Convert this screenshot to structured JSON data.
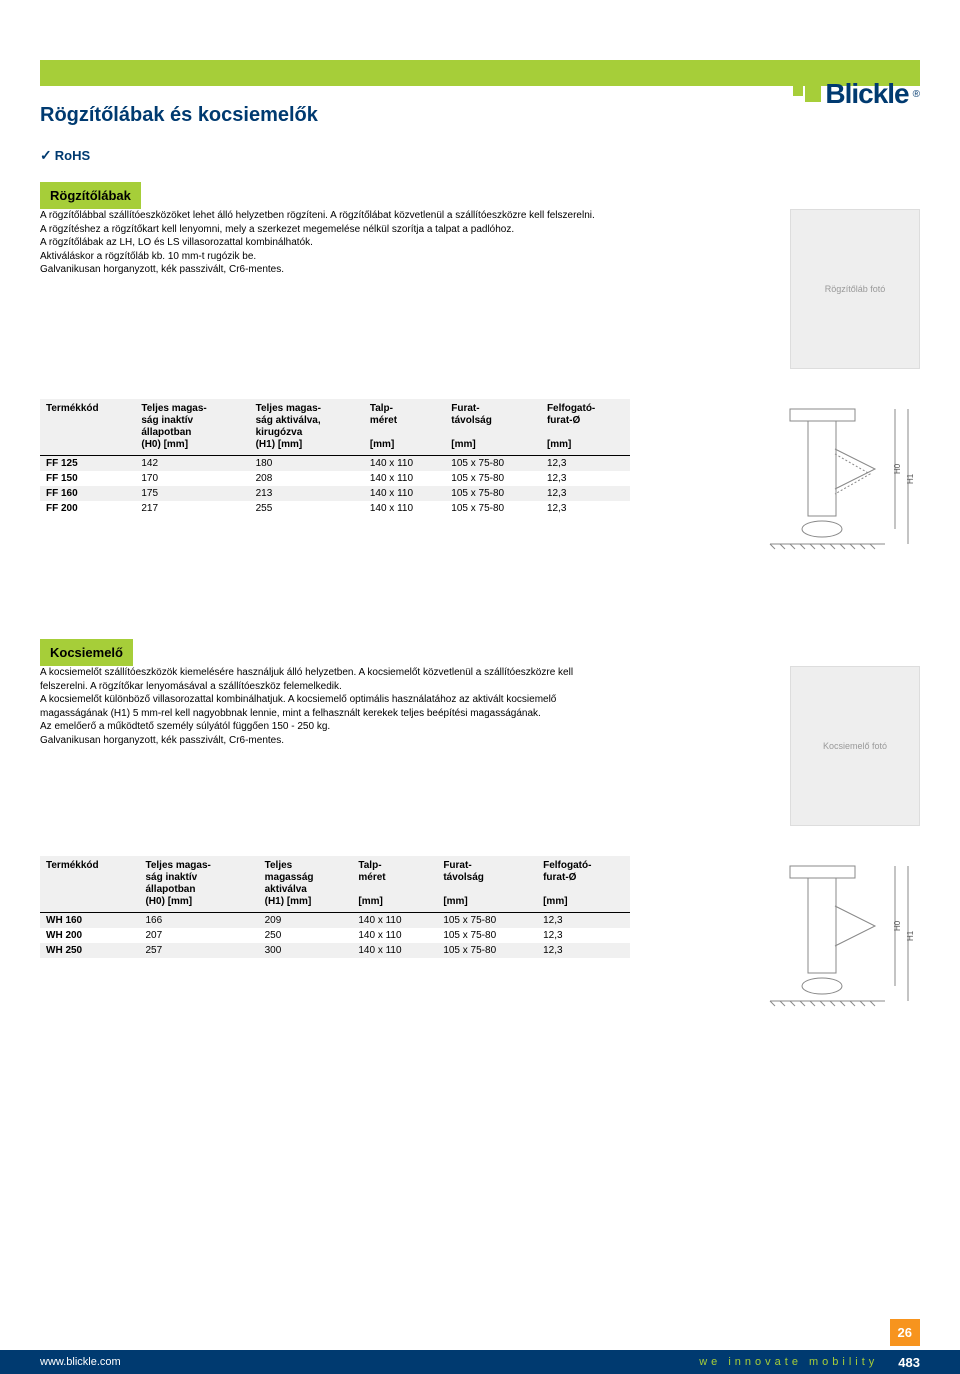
{
  "brand": {
    "name": "Blickle",
    "reg": "®"
  },
  "page_title": "Rögzítőlábak és kocsiemelők",
  "rohs": "RoHS",
  "section1": {
    "tab": "Rögzítőlábak",
    "desc_l1": "A rögzítőlábbal szállítóeszközöket lehet álló helyzetben rögzíteni. A rögzítőlábat közvetlenül a szállítóeszközre kell felszerelni. A rögzítéshez a rögzítőkart kell lenyomni, mely a szerkezet megemelése nélkül szorítja a talpat a padlóhoz.",
    "desc_l2": "A rögzítőlábak az LH, LO és LS villasorozattal kombinálhatók.",
    "desc_l3": "Aktiváláskor a rögzítőláb kb. 10 mm-t rugózik be.",
    "desc_l4": "Galvanikusan horganyzott, kék passzivált, Cr6-mentes.",
    "photo": "Rögzítőláb fotó",
    "diagram": "Méretrajz"
  },
  "table1": {
    "headers": {
      "c0_l1": "Termékkód",
      "c1_l1": "Teljes magas-",
      "c1_l2": "ság inaktív",
      "c1_l3": "állapotban",
      "c1_l4": "(H0) [mm]",
      "c2_l1": "Teljes magas-",
      "c2_l2": "ság aktiválva,",
      "c2_l3": "kirugózva",
      "c2_l4": "(H1) [mm]",
      "c3_l1": "Talp-",
      "c3_l2": "méret",
      "c3_l4": "[mm]",
      "c4_l1": "Furat-",
      "c4_l2": "távolság",
      "c4_l4": "[mm]",
      "c5_l1": "Felfogató-",
      "c5_l2": "furat-Ø",
      "c5_l4": "[mm]"
    },
    "rows": [
      {
        "code": "FF 125",
        "h0": "142",
        "h1": "180",
        "plate": "140 x 110",
        "bolt": "105 x 75-80",
        "hole": "12,3"
      },
      {
        "code": "FF 150",
        "h0": "170",
        "h1": "208",
        "plate": "140 x 110",
        "bolt": "105 x 75-80",
        "hole": "12,3"
      },
      {
        "code": "FF 160",
        "h0": "175",
        "h1": "213",
        "plate": "140 x 110",
        "bolt": "105 x 75-80",
        "hole": "12,3"
      },
      {
        "code": "FF 200",
        "h0": "217",
        "h1": "255",
        "plate": "140 x 110",
        "bolt": "105 x 75-80",
        "hole": "12,3"
      }
    ]
  },
  "section2": {
    "tab": "Kocsiemelő",
    "desc_l1": "A kocsiemelőt szállítóeszközök kiemelésére használjuk álló helyzetben. A kocsiemelőt közvetlenül a szállítóeszközre kell felszerelni. A rögzítőkar lenyomásával a szállítóeszköz felemelkedik.",
    "desc_l2": "A kocsiemelőt különböző villasorozattal kombinálhatjuk. A kocsiemelő optimális használatához az aktivált kocsiemelő magasságának (H1) 5 mm-rel kell nagyobbnak lennie, mint a felhasznált kerekek teljes beépítési magasságának.",
    "desc_l3": "Az emelőerő a működtető személy súlyától függően 150 - 250 kg.",
    "desc_l4": "Galvanikusan horganyzott, kék passzivált, Cr6-mentes.",
    "photo": "Kocsiemelő fotó",
    "diagram": "Méretrajz"
  },
  "table2": {
    "headers": {
      "c0_l1": "Termékkód",
      "c1_l1": "Teljes magas-",
      "c1_l2": "ság inaktív",
      "c1_l3": "állapotban",
      "c1_l4": "(H0) [mm]",
      "c2_l1": "Teljes",
      "c2_l2": "magasság",
      "c2_l3": "aktiválva",
      "c2_l4": "(H1) [mm]",
      "c3_l1": "Talp-",
      "c3_l2": "méret",
      "c3_l4": "[mm]",
      "c4_l1": "Furat-",
      "c4_l2": "távolság",
      "c4_l4": "[mm]",
      "c5_l1": "Felfogató-",
      "c5_l2": "furat-Ø",
      "c5_l4": "[mm]"
    },
    "rows": [
      {
        "code": "WH 160",
        "h0": "166",
        "h1": "209",
        "plate": "140 x 110",
        "bolt": "105 x 75-80",
        "hole": "12,3"
      },
      {
        "code": "WH 200",
        "h0": "207",
        "h1": "250",
        "plate": "140 x 110",
        "bolt": "105 x 75-80",
        "hole": "12,3"
      },
      {
        "code": "WH 250",
        "h0": "257",
        "h1": "300",
        "plate": "140 x 110",
        "bolt": "105 x 75-80",
        "hole": "12,3"
      }
    ]
  },
  "footer": {
    "chapter": "26",
    "url": "www.blickle.com",
    "slogan": "we innovate mobility",
    "page": "483"
  },
  "colors": {
    "green": "#a6ce39",
    "navy": "#003a70",
    "orange": "#f7941e",
    "row_alt": "#f0f0f0"
  },
  "dim_labels": {
    "h0": "H0",
    "h1": "H1"
  }
}
